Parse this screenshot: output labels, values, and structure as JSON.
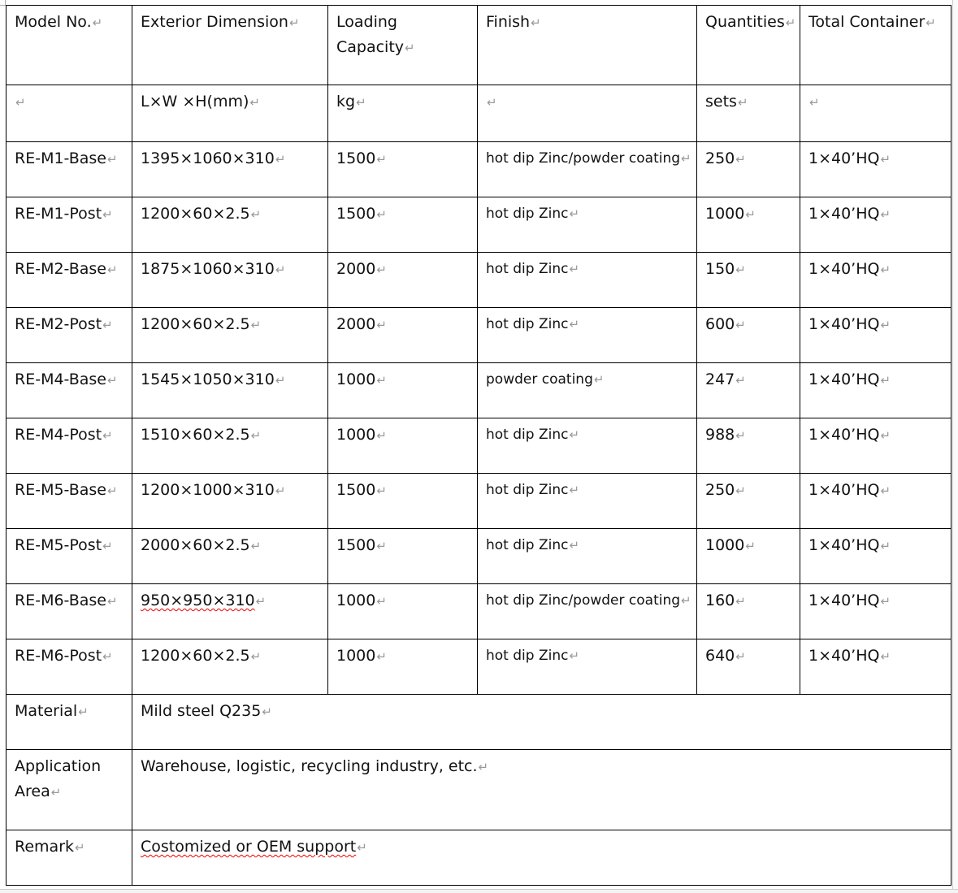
{
  "header": [
    "Model No.",
    "Exterior Dimension",
    "Loading Capacity",
    "Finish",
    "Quantities",
    "Total Container"
  ],
  "units": [
    "",
    "L×W ×H(mm)",
    "kg",
    "",
    "sets",
    ""
  ],
  "rows": [
    [
      "RE-M1-Base",
      "1395×1060×310",
      "1500",
      "hot dip Zinc/powder coating",
      "250",
      "1×40’HQ"
    ],
    [
      "RE-M1-Post",
      "1200×60×2.5",
      "1500",
      "hot dip Zinc",
      "1000",
      "1×40’HQ"
    ],
    [
      "RE-M2-Base",
      "1875×1060×310",
      "2000",
      "hot dip Zinc",
      "150",
      "1×40’HQ"
    ],
    [
      "RE-M2-Post",
      "1200×60×2.5",
      "2000",
      "hot dip Zinc",
      "600",
      "1×40’HQ"
    ],
    [
      "RE-M4-Base",
      "1545×1050×310",
      "1000",
      "powder coating",
      "247",
      "1×40’HQ"
    ],
    [
      "RE-M4-Post",
      "1510×60×2.5",
      "1000",
      "hot dip Zinc",
      "988",
      "1×40’HQ"
    ],
    [
      "RE-M5-Base",
      "1200×1000×310",
      "1500",
      "hot dip Zinc",
      "250",
      "1×40’HQ"
    ],
    [
      "RE-M5-Post",
      "2000×60×2.5",
      "1500",
      "hot dip Zinc",
      "1000",
      "1×40’HQ"
    ],
    [
      "RE-M6-Base",
      "950×950×310",
      "1000",
      "hot dip Zinc/powder coating",
      "160",
      "1×40’HQ"
    ],
    [
      "RE-M6-Post",
      "1200×60×2.5",
      "1000",
      "hot dip Zinc",
      "640",
      "1×40’HQ"
    ]
  ],
  "footer": [
    {
      "label": "Material",
      "value": "Mild steel Q235"
    },
    {
      "label": "Application Area",
      "value": "Warehouse, logistic, recycling industry, etc."
    },
    {
      "label": "Remark",
      "value": "Costomized or OEM support"
    }
  ]
}
